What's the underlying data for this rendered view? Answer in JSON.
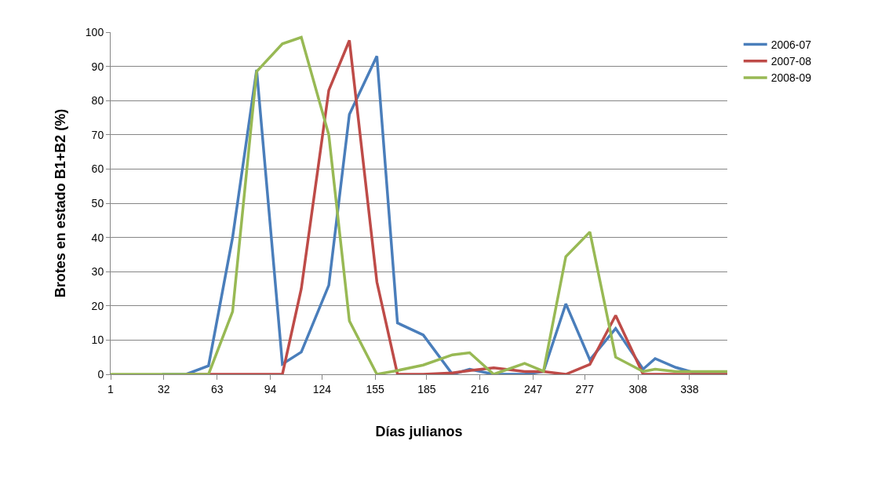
{
  "chart_data": {
    "type": "line",
    "xlabel": "Días julianos",
    "ylabel": "Brotes en estado B1+B2 (%)",
    "x": [
      1,
      16,
      31,
      45,
      58,
      72,
      86,
      101,
      112,
      128,
      140,
      156,
      168,
      183,
      200,
      210,
      224,
      242,
      253,
      266,
      280,
      295,
      311,
      318,
      330,
      344,
      360
    ],
    "series": [
      {
        "name": "2006-07",
        "color": "#4a7ebb",
        "values": [
          null,
          null,
          0,
          0,
          2.5,
          40,
          89,
          3,
          6.5,
          26,
          76,
          93,
          15,
          11.5,
          0,
          1.5,
          0,
          0,
          0.8,
          20.6,
          4.2,
          13.4,
          1.5,
          4.6,
          2,
          0,
          0
        ]
      },
      {
        "name": "2007-08",
        "color": "#be4b48",
        "values": [
          null,
          null,
          null,
          0,
          0,
          0,
          0,
          0,
          25,
          83,
          97.6,
          27,
          0,
          0,
          0.4,
          1.1,
          1.9,
          0.8,
          0.8,
          0,
          2.9,
          17.2,
          0,
          0,
          0,
          0,
          0
        ]
      },
      {
        "name": "2008-09",
        "color": "#98b954",
        "values": [
          0,
          0,
          0,
          0,
          0,
          18.3,
          88.5,
          96.6,
          98.5,
          70,
          15.6,
          0,
          1.1,
          2.7,
          5.7,
          6.3,
          0,
          3.2,
          0.9,
          34.4,
          41.6,
          5,
          0.8,
          1.5,
          0.8,
          0.8,
          0.8
        ]
      }
    ],
    "xlim": [
      1,
      360
    ],
    "xticks": [
      1,
      32,
      63,
      94,
      124,
      155,
      185,
      216,
      247,
      277,
      308,
      338
    ],
    "ylim": [
      0,
      100
    ],
    "yticks": [
      0,
      10,
      20,
      30,
      40,
      50,
      60,
      70,
      80,
      90,
      100
    ],
    "grid": "y",
    "legend": "top right",
    "marker": "none",
    "line_style": "solid"
  }
}
